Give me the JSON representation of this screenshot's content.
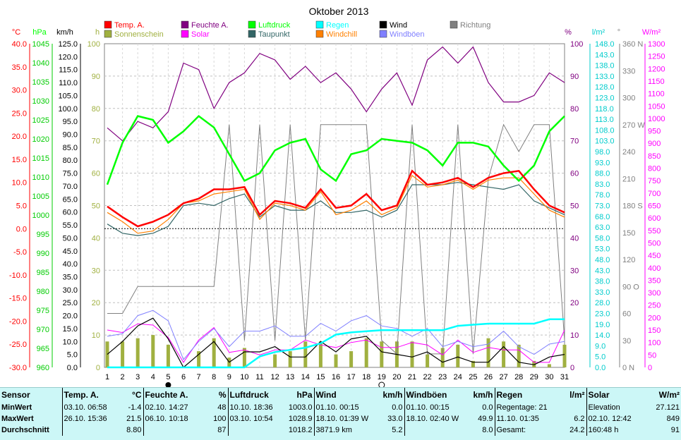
{
  "title": "Oktober 2013",
  "legend": [
    {
      "label": "Temp. A.",
      "color": "#ff0000"
    },
    {
      "label": "Feuchte A.",
      "color": "#800080"
    },
    {
      "label": "Luftdruck",
      "color": "#00ff00"
    },
    {
      "label": "Regen",
      "color": "#00ffff"
    },
    {
      "label": "Wind",
      "color": "#000000"
    },
    {
      "label": "Richtung",
      "color": "#808080"
    },
    {
      "label": "Sonnenschein",
      "color": "#a0b040"
    },
    {
      "label": "Solar",
      "color": "#ff00ff"
    },
    {
      "label": "Taupunkt",
      "color": "#336666"
    },
    {
      "label": "Windchill",
      "color": "#ff8000"
    },
    {
      "label": "Windböen",
      "color": "#8080ff"
    }
  ],
  "axis_units": {
    "temp": "°C",
    "hpa": "hPa",
    "kmh": "km/h",
    "h": "h",
    "pct": "%",
    "lm2": "l/m²",
    "deg": "°",
    "wm2": "W/m²"
  },
  "axes": {
    "temp": [
      "40.0",
      "35.0",
      "30.0",
      "25.0",
      "20.0",
      "15.0",
      "10.0",
      "5.0",
      "0.0",
      "-5.0",
      "-10.0",
      "-15.0",
      "-20.0",
      "-25.0",
      "-30.0"
    ],
    "hpa": [
      "1045",
      "1040",
      "1035",
      "1030",
      "1025",
      "1020",
      "1015",
      "1010",
      "1005",
      "1000",
      "995",
      "990",
      "985",
      "980",
      "975",
      "970",
      "965",
      "960"
    ],
    "kmh": [
      "125.0",
      "120.0",
      "115.0",
      "110.0",
      "105.0",
      "100.0",
      "95.0",
      "90.0",
      "85.0",
      "80.0",
      "75.0",
      "70.0",
      "65.0",
      "60.0",
      "55.0",
      "50.0",
      "45.0",
      "40.0",
      "35.0",
      "30.0",
      "25.0",
      "20.0",
      "15.0",
      "10.0",
      "5.0",
      "0.0"
    ],
    "h": [
      "100",
      "90",
      "80",
      "70",
      "60",
      "50",
      "40",
      "30",
      "20",
      "10",
      "0"
    ],
    "pct": [
      "100",
      "90",
      "80",
      "70",
      "60",
      "50",
      "40",
      "30",
      "20",
      "10",
      "0"
    ],
    "lm2": [
      "148.0",
      "143.0",
      "138.0",
      "133.0",
      "128.0",
      "123.0",
      "118.0",
      "113.0",
      "108.0",
      "103.0",
      "98.0",
      "93.0",
      "88.0",
      "83.0",
      "78.0",
      "73.0",
      "68.0",
      "63.0",
      "58.0",
      "53.0",
      "48.0",
      "43.0",
      "38.0",
      "33.0",
      "28.0",
      "23.0",
      "19.0",
      "14.0",
      "9.0",
      "5.0",
      "0.0"
    ],
    "deg": [
      "360 N",
      "330",
      "300",
      "270 W",
      "240",
      "210",
      "180 S",
      "150",
      "120",
      "90 O",
      "60",
      "30",
      "0 N"
    ],
    "wm2": [
      "1300",
      "1250",
      "1200",
      "1150",
      "1100",
      "1050",
      "1000",
      "950",
      "900",
      "850",
      "800",
      "750",
      "700",
      "650",
      "600",
      "550",
      "500",
      "450",
      "400",
      "350",
      "300",
      "250",
      "200",
      "150",
      "100",
      "50",
      "0"
    ]
  },
  "chart_data": {
    "type": "line",
    "title": "Oktober 2013",
    "x": [
      1,
      2,
      3,
      4,
      5,
      6,
      7,
      8,
      9,
      10,
      11,
      12,
      13,
      14,
      15,
      16,
      17,
      18,
      19,
      20,
      21,
      22,
      23,
      24,
      25,
      26,
      27,
      28,
      29,
      30,
      31
    ],
    "series": [
      {
        "name": "Temp. A.",
        "axis": "°C",
        "values": [
          4.8,
          2.5,
          0.5,
          1.5,
          3.0,
          5.5,
          6.5,
          8.5,
          8.5,
          9.0,
          3.0,
          6.0,
          5.5,
          4.5,
          8.5,
          4.5,
          5.0,
          7.5,
          4.0,
          5.0,
          12.5,
          9.5,
          10.0,
          11.0,
          9.0,
          11.0,
          12.0,
          12.5,
          8.5,
          5.0,
          3.5
        ]
      },
      {
        "name": "Feuchte A.",
        "axis": "%",
        "values": [
          74,
          70,
          76,
          74,
          79,
          94,
          92,
          80,
          88,
          91,
          97,
          95,
          89,
          93,
          88,
          91,
          86,
          79,
          86,
          91,
          81,
          95,
          99,
          94,
          99,
          88,
          82,
          82,
          84,
          91,
          88
        ]
      },
      {
        "name": "Luftdruck",
        "axis": "hPa",
        "values": [
          1008,
          1019,
          1026,
          1025,
          1019,
          1022,
          1026,
          1023,
          1016,
          1009,
          1011,
          1017,
          1019,
          1020,
          1012,
          1009,
          1016,
          1017,
          1020,
          1019.5,
          1019,
          1017,
          1013,
          1019,
          1019,
          1018,
          1013,
          1009,
          1013,
          1022,
          1026
        ]
      },
      {
        "name": "Regen",
        "axis": "l/m²",
        "values": [
          0,
          0,
          0,
          0,
          0,
          0,
          0,
          0,
          0,
          0,
          5,
          7,
          8,
          9,
          11,
          15,
          16,
          16.5,
          17,
          17,
          17,
          17,
          17,
          19,
          19.5,
          20,
          20,
          20,
          20,
          22,
          22
        ]
      },
      {
        "name": "Wind",
        "axis": "km/h",
        "values": [
          5,
          10,
          16,
          19,
          11,
          0,
          5,
          10,
          2,
          6,
          6,
          8,
          4,
          4,
          10,
          6,
          11,
          12,
          6,
          5,
          4,
          6,
          2,
          4,
          2,
          2,
          8,
          2,
          1,
          4,
          5
        ]
      },
      {
        "name": "Richtung",
        "axis": "°",
        "values": [
          60,
          60,
          90,
          90,
          90,
          90,
          90,
          90,
          270,
          30,
          270,
          30,
          270,
          30,
          270,
          270,
          270,
          270,
          30,
          15,
          270,
          15,
          15,
          270,
          15,
          210,
          270,
          240,
          270,
          270,
          30
        ]
      },
      {
        "name": "Sonnenschein",
        "axis": "h",
        "values": [
          8,
          8,
          9,
          10,
          7,
          0,
          5,
          9,
          3,
          6,
          0,
          4,
          5,
          8,
          8,
          4,
          5,
          9,
          8,
          8,
          8,
          4,
          6,
          7,
          2,
          9,
          8,
          7,
          2,
          1,
          7
        ]
      },
      {
        "name": "Solar",
        "axis": "W/m²",
        "values": [
          150,
          140,
          175,
          170,
          120,
          20,
          110,
          160,
          60,
          70,
          50,
          70,
          70,
          110,
          90,
          80,
          100,
          110,
          80,
          80,
          100,
          90,
          50,
          110,
          60,
          80,
          70,
          70,
          20,
          20,
          150
        ]
      },
      {
        "name": "Taupunkt",
        "axis": "°C",
        "values": [
          1.0,
          -1.0,
          -1.5,
          -1.0,
          0.5,
          5.0,
          5.5,
          5.0,
          6.5,
          7.5,
          2.5,
          5.0,
          4.0,
          4.0,
          6.0,
          3.5,
          3.5,
          4.0,
          2.5,
          4.0,
          9.5,
          9.5,
          9.5,
          10.0,
          9.5,
          9.0,
          8.5,
          9.5,
          6.0,
          4.5,
          3.0
        ]
      },
      {
        "name": "Windchill",
        "axis": "°C",
        "values": [
          3.5,
          1.5,
          -1.0,
          -0.5,
          2.0,
          5.5,
          6.0,
          7.5,
          8.0,
          8.5,
          2.0,
          5.5,
          5.0,
          4.0,
          8.0,
          3.0,
          4.0,
          6.0,
          3.0,
          4.5,
          11.5,
          9.0,
          9.5,
          10.5,
          8.5,
          10.5,
          11.0,
          11.0,
          7.5,
          4.0,
          2.5
        ]
      },
      {
        "name": "Windböen",
        "axis": "km/h",
        "values": [
          12,
          13,
          20,
          22,
          18,
          3,
          10,
          15,
          8,
          14,
          14,
          16,
          12,
          12,
          17,
          14,
          18,
          20,
          16,
          15,
          12,
          15,
          8,
          10,
          8,
          9,
          14,
          8,
          5,
          9,
          10
        ]
      }
    ],
    "ylim": {
      "temp": [
        -30,
        40
      ],
      "hpa": [
        960,
        1045
      ],
      "kmh": [
        0,
        125
      ],
      "h": [
        0,
        100
      ],
      "pct": [
        0,
        100
      ],
      "lm2": [
        0,
        148
      ],
      "deg": [
        0,
        360
      ],
      "wm2": [
        0,
        1300
      ]
    },
    "reference_line": {
      "axis": "°C",
      "value": 0.0
    },
    "moon_phases": [
      {
        "day": 5,
        "phase": "new"
      },
      {
        "day": 19,
        "phase": "full"
      }
    ]
  },
  "stats": {
    "headers": [
      "Sensor",
      "Temp. A.",
      "°C",
      "Feuchte A.",
      "%",
      "Luftdruck",
      "hPa",
      "Wind",
      "km/h",
      "Windböen",
      "km/h",
      "Regen",
      "l/m²",
      "Solar",
      "W/m²"
    ],
    "rows": [
      {
        "label": "MinWert",
        "c": [
          "03.10.  06:58",
          "-1.4",
          "02.10.  14:27",
          "48",
          "10.10.  18:36",
          "1003.0",
          "01.10.  00:15",
          "0.0",
          "01.10.  00:15",
          "0.0",
          "Regentage: 21",
          "",
          "Elevation",
          "27.121"
        ]
      },
      {
        "label": "MaxWert",
        "c": [
          "26.10.  15:36",
          "21.5",
          "06.10.  10:18",
          "100",
          "03.10.  10:54",
          "1028.9",
          "18.10.  01:39  W",
          "33.0",
          "18.10.  02:40  W",
          "49.9",
          "11.10.  01:35",
          "6.2",
          "02.10.  12:42",
          "849"
        ]
      },
      {
        "label": "Durchschnitt",
        "c": [
          "",
          "8.80",
          "",
          "87",
          "",
          "1018.2",
          "3871.9 km",
          "5.2",
          "",
          "8.0",
          "Gesamt:",
          "24.2",
          "160:48 h",
          "91"
        ]
      }
    ]
  }
}
